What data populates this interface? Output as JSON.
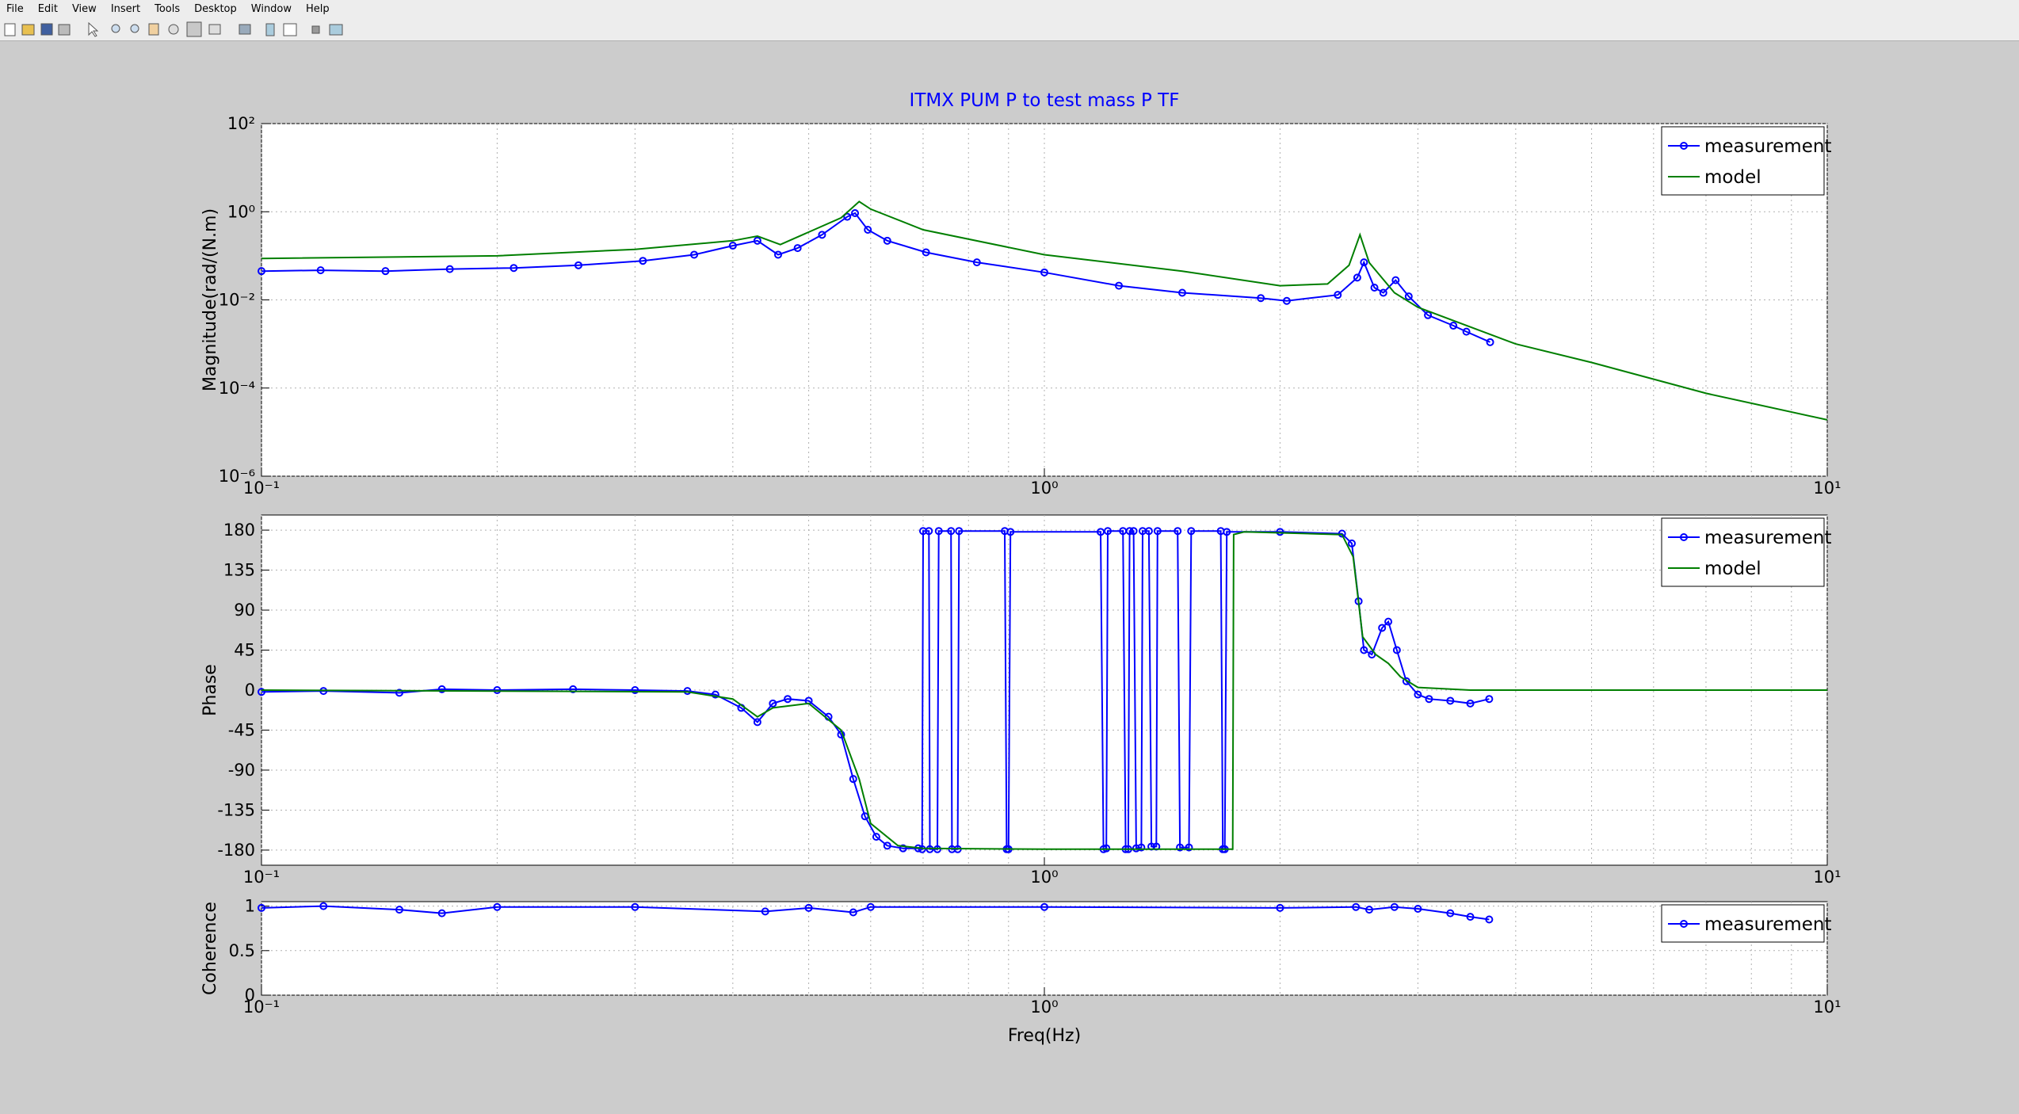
{
  "menu": [
    "File",
    "Edit",
    "View",
    "Insert",
    "Tools",
    "Desktop",
    "Window",
    "Help"
  ],
  "chart_data": [
    {
      "type": "line",
      "title": "ITMX PUM P to test mass P TF",
      "ylabel": "Magnitude(rad/(N.m)",
      "log_x": true,
      "log_y": true,
      "grid": true,
      "legend": "northeast",
      "xlim": [
        0.1,
        10
      ],
      "xticks": [
        {
          "value": 0.1,
          "label": "10⁻¹"
        },
        {
          "value": 1,
          "label": "10⁰"
        },
        {
          "value": 10,
          "label": "10¹"
        }
      ],
      "ylim": [
        1e-06,
        100
      ],
      "yticks": [
        {
          "value": 1e-06,
          "label": "10⁻⁶"
        },
        {
          "value": 0.0001,
          "label": "10⁻⁴"
        },
        {
          "value": 0.01,
          "label": "10⁻²"
        },
        {
          "value": 1,
          "label": "10⁰"
        },
        {
          "value": 100,
          "label": "10²"
        }
      ],
      "series": [
        {
          "name": "measurement",
          "color": "#0000ff",
          "marker": true,
          "x": [
            0.1,
            0.119,
            0.144,
            0.174,
            0.21,
            0.254,
            0.307,
            0.357,
            0.4,
            0.43,
            0.457,
            0.484,
            0.52,
            0.56,
            0.573,
            0.595,
            0.63,
            0.706,
            0.82,
            1,
            1.245,
            1.5,
            1.89,
            2.04,
            2.37,
            2.51,
            2.56,
            2.64,
            2.71,
            2.81,
            2.92,
            3.09,
            3.33,
            3.46,
            3.71
          ],
          "values": [
            0.045,
            0.047,
            0.045,
            0.05,
            0.053,
            0.061,
            0.077,
            0.106,
            0.17,
            0.22,
            0.106,
            0.15,
            0.3,
            0.77,
            0.93,
            0.39,
            0.22,
            0.12,
            0.071,
            0.042,
            0.021,
            0.0145,
            0.011,
            0.0095,
            0.013,
            0.032,
            0.071,
            0.019,
            0.0145,
            0.028,
            0.012,
            0.0045,
            0.0026,
            0.0019,
            0.0011
          ]
        },
        {
          "name": "model",
          "color": "#007f00",
          "marker": false,
          "x": [
            0.1,
            0.2,
            0.3,
            0.4,
            0.43,
            0.46,
            0.55,
            0.58,
            0.6,
            0.7,
            1,
            1.5,
            2,
            2.3,
            2.45,
            2.53,
            2.6,
            2.8,
            3,
            4,
            5,
            7,
            10
          ],
          "values": [
            0.087,
            0.1,
            0.14,
            0.22,
            0.28,
            0.18,
            0.73,
            1.7,
            1.15,
            0.39,
            0.106,
            0.045,
            0.021,
            0.023,
            0.061,
            0.3,
            0.07,
            0.0145,
            0.0068,
            0.001,
            0.00038,
            7.6e-05,
            1.9e-05
          ]
        }
      ]
    },
    {
      "type": "line",
      "ylabel": "Phase",
      "log_x": true,
      "log_y": false,
      "grid": true,
      "legend": "northeast",
      "xlim": [
        0.1,
        10
      ],
      "xticks": [
        {
          "value": 0.1,
          "label": "10⁻¹"
        },
        {
          "value": 1,
          "label": "10⁰"
        },
        {
          "value": 10,
          "label": "10¹"
        }
      ],
      "ylim": [
        -197,
        197
      ],
      "yticks": [
        -180,
        -135,
        -90,
        -45,
        0,
        45,
        90,
        135,
        180
      ],
      "series": [
        {
          "name": "measurement",
          "color": "#0000ff",
          "marker": true,
          "x": [
            0.1,
            0.12,
            0.15,
            0.17,
            0.2,
            0.25,
            0.3,
            0.35,
            0.38,
            0.41,
            0.43,
            0.45,
            0.47,
            0.5,
            0.53,
            0.55,
            0.57,
            0.59,
            0.61,
            0.63,
            0.66,
            0.69,
            0.698,
            0.7,
            0.712,
            0.714,
            0.73,
            0.733,
            0.76,
            0.762,
            0.775,
            0.778,
            0.89,
            0.895,
            0.9,
            0.905,
            1.18,
            1.19,
            1.2,
            1.205,
            1.26,
            1.27,
            1.28,
            1.285,
            1.3,
            1.31,
            1.33,
            1.335,
            1.36,
            1.37,
            1.39,
            1.395,
            1.48,
            1.49,
            1.53,
            1.54,
            1.68,
            1.69,
            1.7,
            1.71,
            2,
            2.4,
            2.47,
            2.52,
            2.56,
            2.62,
            2.7,
            2.75,
            2.82,
            2.9,
            3,
            3.1,
            3.3,
            3.5,
            3.7
          ],
          "values": [
            -2,
            -1,
            -3,
            1,
            0,
            1,
            0,
            -1,
            -5,
            -20,
            -36,
            -15,
            -10,
            -12,
            -30,
            -50,
            -100,
            -142,
            -165,
            -175,
            -178,
            -178,
            -179,
            179,
            179,
            -179,
            -179,
            179,
            179,
            -179,
            -179,
            179,
            179,
            -179,
            -179,
            178,
            178,
            -179,
            -178,
            179,
            179,
            -179,
            -179,
            179,
            179,
            -178,
            -177,
            179,
            179,
            -176,
            -176,
            179,
            179,
            -177,
            -177,
            179,
            179,
            -179,
            -179,
            178,
            178,
            176,
            165,
            100,
            45,
            40,
            70,
            77,
            45,
            10,
            -5,
            -10,
            -12,
            -15,
            -10
          ]
        },
        {
          "name": "model",
          "color": "#007f00",
          "marker": false,
          "x": [
            0.1,
            0.35,
            0.4,
            0.43,
            0.45,
            0.5,
            0.55,
            0.58,
            0.6,
            0.65,
            0.7,
            1,
            1.74,
            1.745,
            1.8,
            2.4,
            2.48,
            2.55,
            2.65,
            2.75,
            2.85,
            3,
            3.5,
            10
          ],
          "values": [
            0,
            -2,
            -10,
            -30,
            -20,
            -15,
            -45,
            -100,
            -150,
            -175,
            -178,
            -179,
            -179,
            175,
            178,
            175,
            150,
            60,
            40,
            30,
            15,
            3,
            0,
            0
          ]
        }
      ]
    },
    {
      "type": "line",
      "ylabel": "Coherence",
      "xlabel": "Freq(Hz)",
      "log_x": true,
      "log_y": false,
      "grid": true,
      "legend": "northeast",
      "xlim": [
        0.1,
        10
      ],
      "xticks": [
        {
          "value": 0.1,
          "label": "10⁻¹"
        },
        {
          "value": 1,
          "label": "10⁰"
        },
        {
          "value": 10,
          "label": "10¹"
        }
      ],
      "ylim": [
        0,
        1.05
      ],
      "yticks": [
        0,
        0.5,
        1
      ],
      "series": [
        {
          "name": "measurement",
          "color": "#0000ff",
          "marker": true,
          "x": [
            0.1,
            0.12,
            0.15,
            0.17,
            0.2,
            0.3,
            0.44,
            0.5,
            0.57,
            0.6,
            1,
            2,
            2.5,
            2.6,
            2.8,
            3,
            3.3,
            3.5,
            3.7
          ],
          "values": [
            0.98,
            1,
            0.96,
            0.92,
            0.99,
            0.99,
            0.94,
            0.98,
            0.93,
            0.99,
            0.99,
            0.98,
            0.99,
            0.96,
            0.99,
            0.97,
            0.92,
            0.88,
            0.85
          ]
        }
      ]
    }
  ]
}
